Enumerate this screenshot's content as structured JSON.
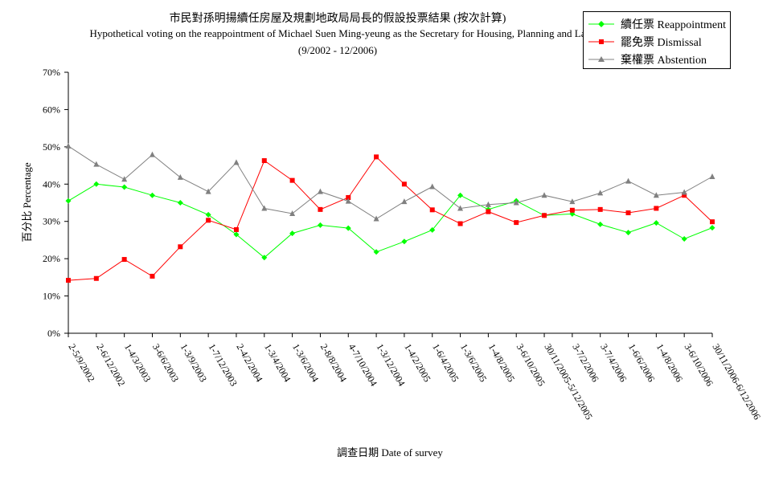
{
  "chart_data": {
    "type": "line",
    "title": "市民對孫明揚續任房屋及規劃地政局局長的假設投票結果 (按次計算)",
    "subtitle": "Hypothetical voting on the reappointment of Michael Suen Ming-yeung as the Secretary for Housing, Planning and La",
    "period": "(9/2002 - 12/2006)",
    "xlabel": "調查日期 Date of survey",
    "ylabel": "百分比 Percentage",
    "ylim": [
      0,
      70
    ],
    "yticks": [
      "0%",
      "10%",
      "20%",
      "30%",
      "40%",
      "50%",
      "60%",
      "70%"
    ],
    "grid": false,
    "legend_position": "top-right",
    "categories": [
      "2-5/9/2002",
      "2-6/12/2002",
      "1-4/3/2003",
      "3-6/6/2003",
      "1-3/9/2003",
      "1-7/12/2003",
      "2-4/2/2004",
      "1-3/4/2004",
      "1-3/6/2004",
      "2-8/8/2004",
      "4-7/10/2004",
      "1-3/12/2004",
      "1-4/2/2005",
      "1-6/4/2005",
      "1-3/6/2005",
      "1-4/8/2005",
      "3-6/10/2005",
      "30/11/2005-5/12/2005",
      "3-7/2/2006",
      "3-7/4/2006",
      "1-6/6/2006",
      "1-4/8/2006",
      "3-6/10/2006",
      "30/11/2006-6/12/2006"
    ],
    "series": [
      {
        "name": "續任票 Reappointment",
        "color": "#00ff00",
        "marker": "diamond",
        "values": [
          35.5,
          40,
          39.2,
          37,
          35,
          31.8,
          26.5,
          20.3,
          26.8,
          29,
          28.2,
          21.8,
          24.6,
          27.7,
          37,
          33.2,
          35.5,
          31.6,
          32,
          29.2,
          27,
          29.6,
          25.3,
          28.3
        ]
      },
      {
        "name": "罷免票 Dismissal",
        "color": "#ff0000",
        "marker": "square",
        "values": [
          14.2,
          14.7,
          19.8,
          15.3,
          23.2,
          30.3,
          27.8,
          46.3,
          41,
          33.2,
          36.4,
          47.3,
          40,
          33.1,
          29.4,
          32.6,
          29.7,
          31.6,
          33,
          33.2,
          32.3,
          33.5,
          37,
          29.9
        ]
      },
      {
        "name": "棄權票 Abstention",
        "color": "#808080",
        "marker": "triangle",
        "values": [
          50.2,
          45.3,
          41.3,
          47.9,
          41.8,
          38,
          45.8,
          33.5,
          32.1,
          38,
          35.4,
          30.7,
          35.3,
          39.3,
          33.5,
          34.5,
          35,
          37,
          35.3,
          37.6,
          40.8,
          37,
          37.8,
          42
        ]
      }
    ]
  }
}
